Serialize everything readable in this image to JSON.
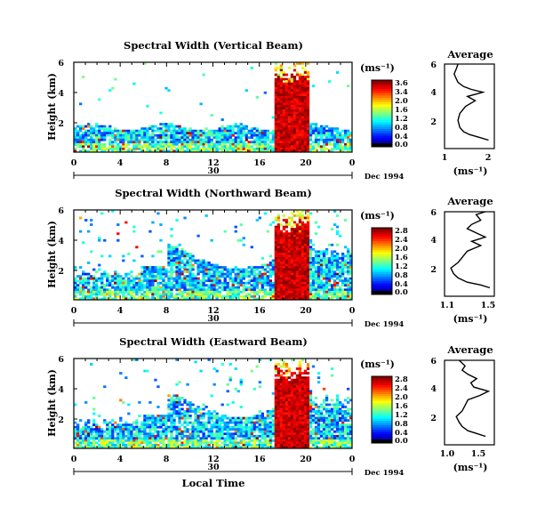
{
  "shared": {
    "xlabel": "Local Time",
    "date_label": "Dec 1994",
    "day_label": "30",
    "ylabel": "Height (km)",
    "unit_label": "(ms⁻¹)",
    "avg_title": "Average",
    "avg_xlabel": "(ms⁻¹)"
  },
  "chart_data": [
    {
      "type": "heatmap",
      "title": "Spectral Width (Vertical Beam)",
      "beam": "vertical",
      "xlabel": "",
      "ylabel": "Height (km)",
      "x_ticks": [
        "0",
        "4",
        "8",
        "12",
        "16",
        "20",
        "0"
      ],
      "y_ticks": [
        "6",
        "4",
        "2"
      ],
      "xlim_hours": [
        0,
        24
      ],
      "ylim_km": [
        0,
        6
      ],
      "colorbar": {
        "ticks": [
          "3.6",
          "3.4",
          "2.0",
          "1.6",
          "1.2",
          "0.8",
          "0.4",
          "0.0"
        ],
        "range": [
          0,
          3.6
        ]
      },
      "profile": {
        "type": "line",
        "title": "Average",
        "x_ticks": [
          "1",
          "2"
        ],
        "xlim": [
          0.9,
          2.2
        ],
        "y_ticks": [
          "6",
          "4",
          "2"
        ],
        "height_km": [
          0.6,
          0.8,
          1.0,
          1.2,
          1.5,
          2.0,
          2.5,
          3.0,
          3.4,
          3.7,
          4.0,
          4.2,
          4.4,
          4.7,
          5.0,
          5.3,
          5.6,
          6.0
        ],
        "value": [
          2.05,
          1.8,
          1.55,
          1.4,
          1.3,
          1.25,
          1.3,
          1.45,
          1.7,
          1.5,
          1.9,
          1.6,
          1.4,
          1.25,
          1.2,
          1.15,
          1.2,
          1.25
        ]
      }
    },
    {
      "type": "heatmap",
      "title": "Spectral Width (Northward Beam)",
      "beam": "northward",
      "xlabel": "",
      "ylabel": "Height (km)",
      "x_ticks": [
        "0",
        "4",
        "8",
        "12",
        "16",
        "20",
        "0"
      ],
      "y_ticks": [
        "6",
        "4",
        "2"
      ],
      "xlim_hours": [
        0,
        24
      ],
      "ylim_km": [
        0,
        6
      ],
      "colorbar": {
        "ticks": [
          "2.8",
          "2.4",
          "2.0",
          "1.6",
          "1.2",
          "0.8",
          "0.4",
          "0.0"
        ],
        "range": [
          0,
          2.8
        ]
      },
      "profile": {
        "type": "line",
        "title": "Average",
        "x_ticks": [
          "1.1",
          "1.5"
        ],
        "xlim": [
          1.05,
          1.6
        ],
        "y_ticks": [
          "6",
          "4",
          "2"
        ],
        "height_km": [
          0.6,
          0.8,
          1.0,
          1.3,
          1.6,
          2.0,
          2.4,
          2.8,
          3.2,
          3.6,
          3.9,
          4.2,
          4.5,
          4.8,
          5.1,
          5.4,
          5.8,
          6.0
        ],
        "value": [
          1.55,
          1.45,
          1.3,
          1.2,
          1.15,
          1.12,
          1.2,
          1.25,
          1.3,
          1.45,
          1.35,
          1.5,
          1.4,
          1.3,
          1.35,
          1.45,
          1.4,
          1.5
        ]
      }
    },
    {
      "type": "heatmap",
      "title": "Spectral Width (Eastward Beam)",
      "beam": "eastward",
      "xlabel": "Local Time",
      "ylabel": "Height (km)",
      "x_ticks": [
        "0",
        "4",
        "8",
        "12",
        "16",
        "20",
        "0"
      ],
      "y_ticks": [
        "6",
        "4",
        "2"
      ],
      "xlim_hours": [
        0,
        24
      ],
      "ylim_km": [
        0,
        6
      ],
      "colorbar": {
        "ticks": [
          "2.8",
          "2.4",
          "2.0",
          "1.6",
          "1.2",
          "0.8",
          "0.4",
          "0.0"
        ],
        "range": [
          0,
          2.8
        ]
      },
      "profile": {
        "type": "line",
        "title": "Average",
        "x_ticks": [
          "1.0",
          "1.5"
        ],
        "xlim": [
          0.9,
          1.75
        ],
        "y_ticks": [
          "6",
          "4",
          "2"
        ],
        "height_km": [
          0.6,
          0.8,
          1.0,
          1.3,
          1.6,
          2.0,
          2.4,
          2.8,
          3.2,
          3.5,
          3.8,
          4.1,
          4.4,
          4.7,
          5.0,
          5.3,
          5.6,
          6.0
        ],
        "value": [
          1.6,
          1.45,
          1.3,
          1.2,
          1.15,
          1.1,
          1.2,
          1.25,
          1.3,
          1.5,
          1.65,
          1.4,
          1.35,
          1.45,
          1.3,
          1.2,
          1.25,
          1.15
        ]
      }
    }
  ]
}
